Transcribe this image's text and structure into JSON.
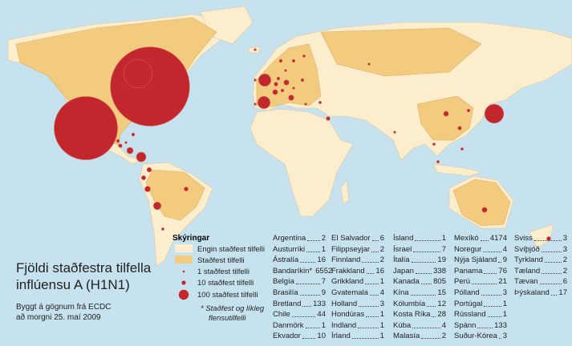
{
  "map": {
    "title_lines": [
      "Fjöldi staðfestra tilfella",
      "inflúensu A (H1N1)"
    ],
    "source_lines": [
      "Byggt á gögnum frá ECDC",
      "að morgni 25. maí 2009"
    ],
    "legend": {
      "title": "Skýringar",
      "items": [
        "Engin staðfest tilfelli",
        "Staðfest tilfelli",
        "1 staðfest tilfelli",
        "10 staðfest tilfelli",
        "100 staðfest tilfelli"
      ],
      "footnote_lines": [
        "* Staðfest og líkleg",
        "flensutilfelli"
      ]
    },
    "countries": [
      {
        "name": "Argentína",
        "cases": 2
      },
      {
        "name": "Austurríki",
        "cases": 1
      },
      {
        "name": "Ástralía",
        "cases": 16
      },
      {
        "name": "Bandaríkin*",
        "cases": 6552
      },
      {
        "name": "Belgía",
        "cases": 7
      },
      {
        "name": "Brasilía",
        "cases": 9
      },
      {
        "name": "Bretland",
        "cases": 133
      },
      {
        "name": "Chile",
        "cases": 44
      },
      {
        "name": "Danmörk",
        "cases": 1
      },
      {
        "name": "Ekvador",
        "cases": 10
      },
      {
        "name": "El Salvador",
        "cases": 6
      },
      {
        "name": "Filippseyjar",
        "cases": 2
      },
      {
        "name": "Finnland",
        "cases": 2
      },
      {
        "name": "Frakkland",
        "cases": 16
      },
      {
        "name": "Grikkland",
        "cases": 1
      },
      {
        "name": "Gvatemala",
        "cases": 4
      },
      {
        "name": "Holland",
        "cases": 3
      },
      {
        "name": "Hondúras",
        "cases": 1
      },
      {
        "name": "Indland",
        "cases": 1
      },
      {
        "name": "Írland",
        "cases": 1
      },
      {
        "name": "Ísland",
        "cases": 1
      },
      {
        "name": "Ísrael",
        "cases": 7
      },
      {
        "name": "Ítalía",
        "cases": 19
      },
      {
        "name": "Japan",
        "cases": 338
      },
      {
        "name": "Kanada",
        "cases": 805
      },
      {
        "name": "Kína",
        "cases": 15
      },
      {
        "name": "Kólumbía",
        "cases": 12
      },
      {
        "name": "Kosta Ríka",
        "cases": 28
      },
      {
        "name": "Kúba",
        "cases": 4
      },
      {
        "name": "Malasía",
        "cases": 2
      },
      {
        "name": "Mexíkó",
        "cases": 4174
      },
      {
        "name": "Noregur",
        "cases": 4
      },
      {
        "name": "Nýja Sjáland",
        "cases": 9
      },
      {
        "name": "Panama",
        "cases": 76
      },
      {
        "name": "Perú",
        "cases": 21
      },
      {
        "name": "Pólland",
        "cases": 3
      },
      {
        "name": "Portúgal",
        "cases": 1
      },
      {
        "name": "Rússland",
        "cases": 1
      },
      {
        "name": "Spánn",
        "cases": 133
      },
      {
        "name": "Suður-Kórea",
        "cases": 3
      },
      {
        "name": "Sviss",
        "cases": 3
      },
      {
        "name": "Svíþjóð",
        "cases": 3
      },
      {
        "name": "Tyrkland",
        "cases": 2
      },
      {
        "name": "Tæland",
        "cases": 2
      },
      {
        "name": "Tævan",
        "cases": 6
      },
      {
        "name": "Þýskaland",
        "cases": 17
      }
    ]
  }
}
